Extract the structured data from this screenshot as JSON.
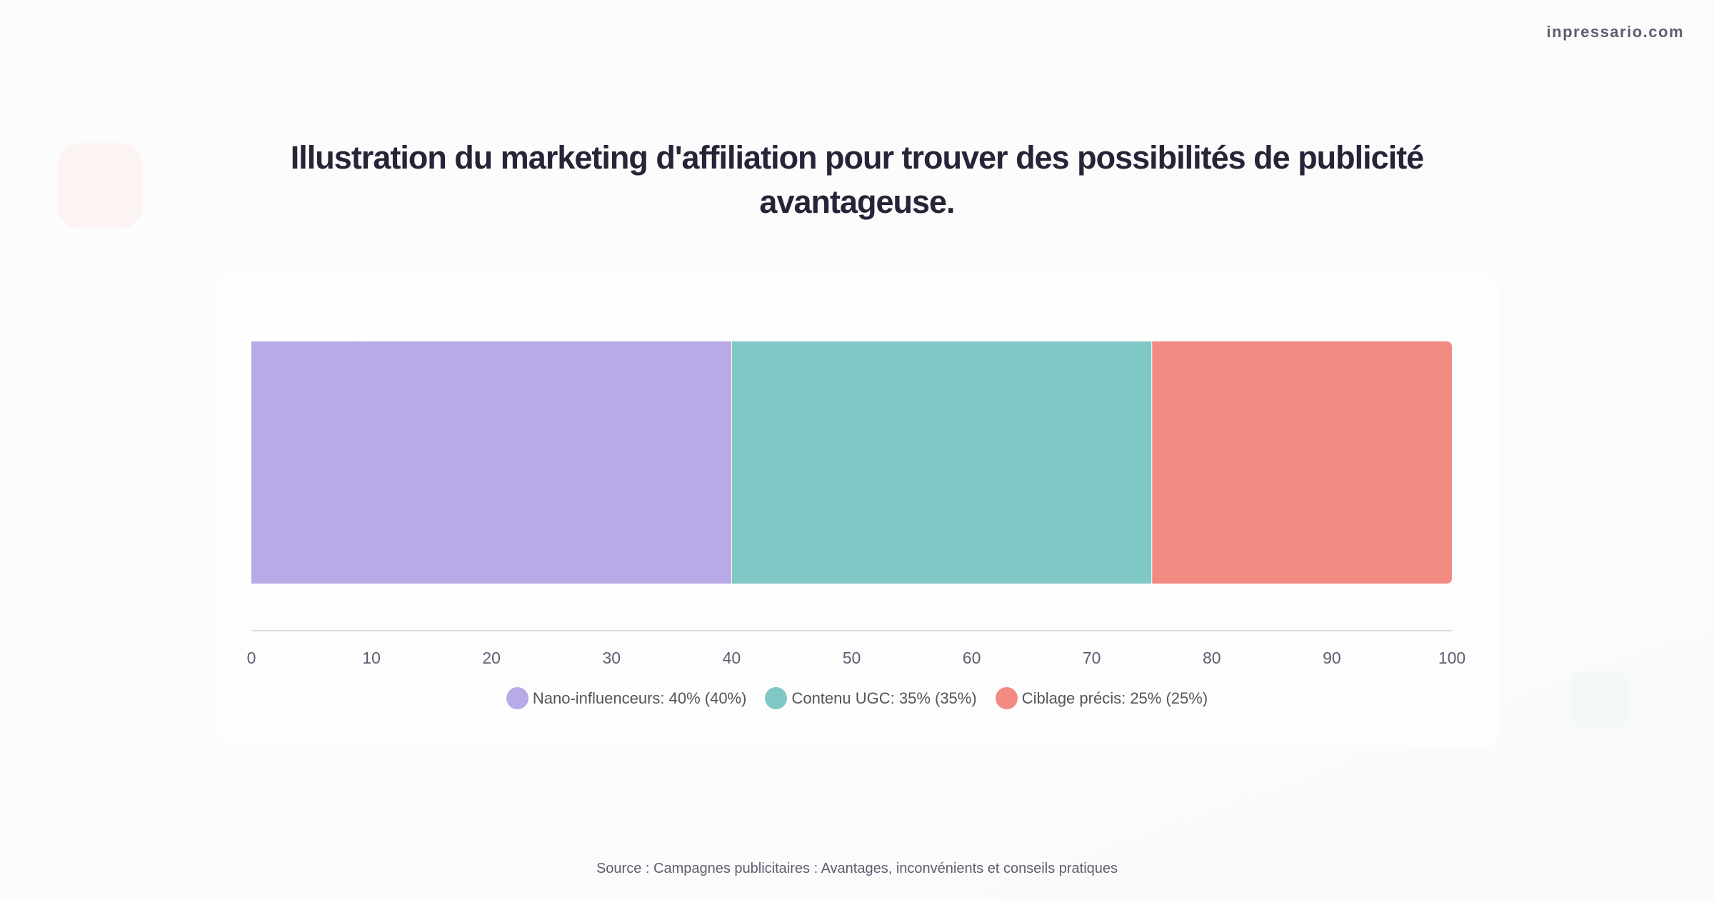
{
  "brand": "inpressario.com",
  "source": "Source : Campagnes publicitaires : Avantages, inconvénients et conseils pratiques",
  "chart_data": {
    "type": "bar",
    "orientation": "horizontal-stacked",
    "title": "Illustration du marketing d'affiliation pour trouver des possibilités de publicité avantageuse.",
    "xlim": [
      0,
      100
    ],
    "xticks": [
      "0",
      "10",
      "20",
      "30",
      "40",
      "50",
      "60",
      "70",
      "80",
      "90",
      "100"
    ],
    "grid": false,
    "legend_position": "bottom",
    "series": [
      {
        "name": "Nano-influenceurs",
        "value": 40,
        "color": "#b7aae7",
        "legend": "Nano-influenceurs: 40% (40%)"
      },
      {
        "name": "Contenu UGC",
        "value": 35,
        "color": "#80c8c6",
        "legend": "Contenu UGC: 35% (35%)"
      },
      {
        "name": "Ciblage précis",
        "value": 25,
        "color": "#f18a80",
        "legend": "Ciblage précis: 25% (25%)"
      }
    ]
  }
}
